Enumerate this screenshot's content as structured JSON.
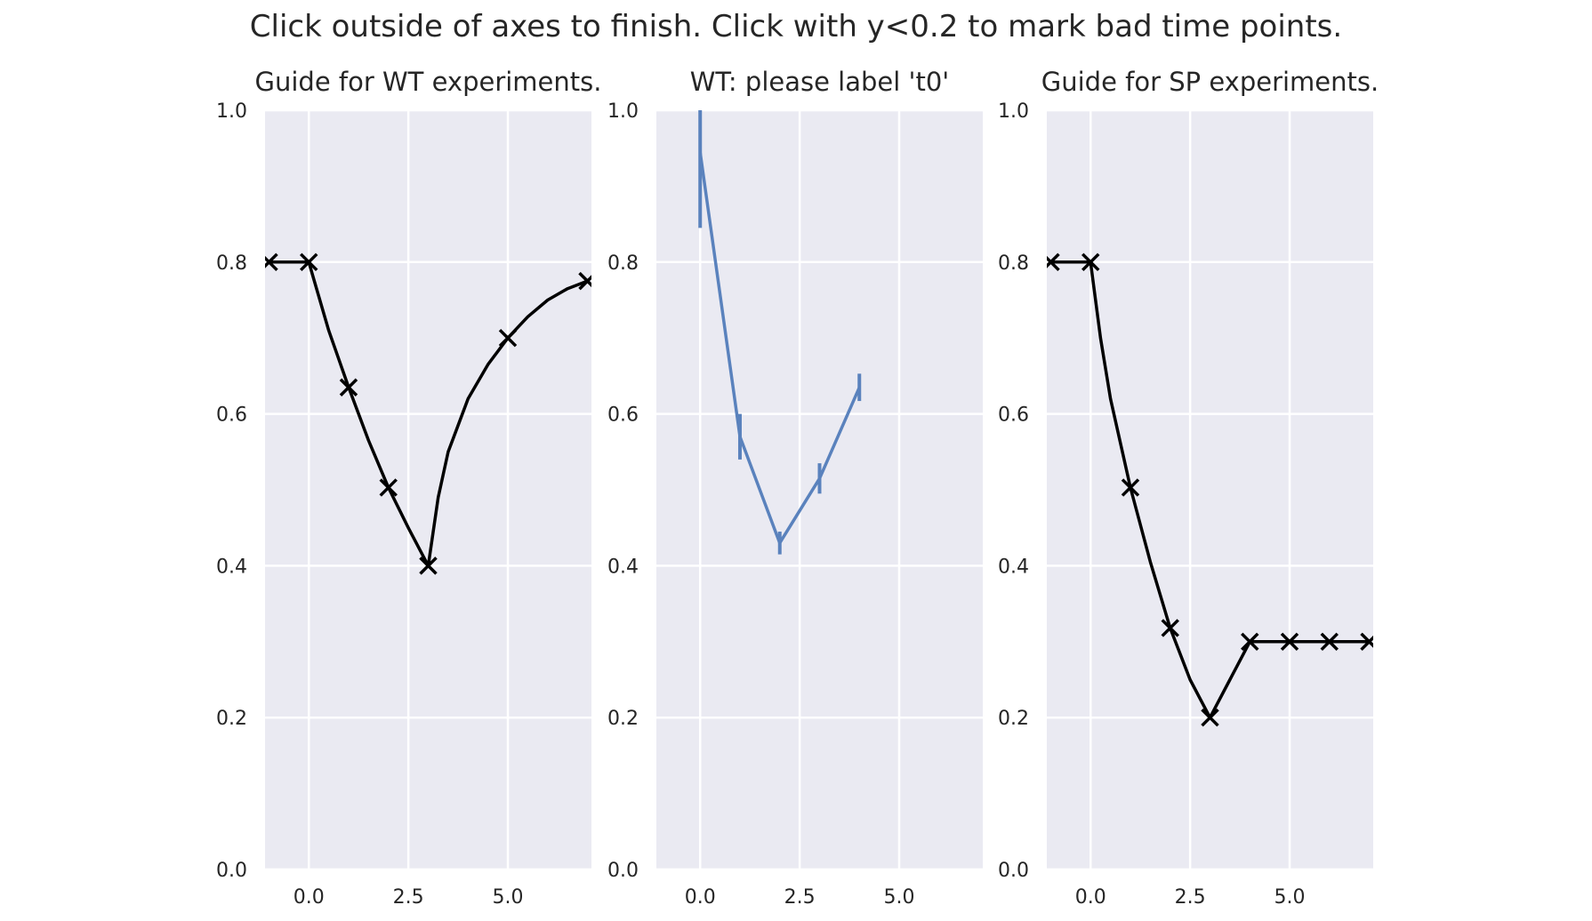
{
  "figure": {
    "suptitle": "Click outside of axes to finish. Click with y<0.2 to mark bad time points."
  },
  "theme": {
    "axes_background": "#eaeaf2",
    "grid_color": "#ffffff",
    "text_color": "#262626",
    "guide_line_color": "#000000",
    "data_line_color": "#5a82bd"
  },
  "chart_data": [
    {
      "type": "line",
      "title": "Guide for WT experiments.",
      "xlim": [
        -1.1,
        7.1
      ],
      "ylim": [
        0.0,
        1.0
      ],
      "xticks": [
        "0.0",
        "2.5",
        "5.0"
      ],
      "xtick_values": [
        0.0,
        2.5,
        5.0
      ],
      "yticks": [
        "0.0",
        "0.2",
        "0.4",
        "0.6",
        "0.8",
        "1.0"
      ],
      "ytick_values": [
        0.0,
        0.2,
        0.4,
        0.6,
        0.8,
        1.0
      ],
      "grid": true,
      "series": [
        {
          "style": "curve-with-x-markers",
          "color": "#000000",
          "curve": [
            [
              -1,
              0.8
            ],
            [
              0,
              0.8
            ],
            [
              0.5,
              0.71
            ],
            [
              1,
              0.635
            ],
            [
              1.5,
              0.565
            ],
            [
              2,
              0.503
            ],
            [
              2.5,
              0.45
            ],
            [
              3,
              0.4
            ],
            [
              3.25,
              0.49
            ],
            [
              3.5,
              0.55
            ],
            [
              4,
              0.62
            ],
            [
              4.5,
              0.665
            ],
            [
              5,
              0.7
            ],
            [
              5.5,
              0.728
            ],
            [
              6,
              0.75
            ],
            [
              6.5,
              0.765
            ],
            [
              7,
              0.775
            ]
          ],
          "markers": [
            [
              -1,
              0.8
            ],
            [
              0,
              0.8
            ],
            [
              1,
              0.635
            ],
            [
              2,
              0.503
            ],
            [
              3,
              0.4
            ],
            [
              5,
              0.7
            ],
            [
              7,
              0.775
            ]
          ]
        }
      ]
    },
    {
      "type": "line",
      "title": "WT: please label 't0'",
      "xlim": [
        -1.1,
        7.1
      ],
      "ylim": [
        0.0,
        1.0
      ],
      "xticks": [
        "0.0",
        "2.5",
        "5.0"
      ],
      "xtick_values": [
        0.0,
        2.5,
        5.0
      ],
      "yticks": [
        "0.0",
        "0.2",
        "0.4",
        "0.6",
        "0.8",
        "1.0"
      ],
      "ytick_values": [
        0.0,
        0.2,
        0.4,
        0.6,
        0.8,
        1.0
      ],
      "grid": true,
      "series": [
        {
          "style": "line-with-errorbars",
          "color": "#5a82bd",
          "x": [
            0,
            1,
            2,
            3,
            4
          ],
          "y": [
            0.945,
            0.57,
            0.43,
            0.515,
            0.635
          ],
          "yerr": [
            0.1,
            0.03,
            0.015,
            0.02,
            0.018
          ]
        }
      ]
    },
    {
      "type": "line",
      "title": "Guide for SP experiments.",
      "xlim": [
        -1.1,
        7.1
      ],
      "ylim": [
        0.0,
        1.0
      ],
      "xticks": [
        "0.0",
        "2.5",
        "5.0"
      ],
      "xtick_values": [
        0.0,
        2.5,
        5.0
      ],
      "yticks": [
        "0.0",
        "0.2",
        "0.4",
        "0.6",
        "0.8",
        "1.0"
      ],
      "ytick_values": [
        0.0,
        0.2,
        0.4,
        0.6,
        0.8,
        1.0
      ],
      "grid": true,
      "series": [
        {
          "style": "curve-with-x-markers",
          "color": "#000000",
          "curve": [
            [
              -1,
              0.8
            ],
            [
              0,
              0.8
            ],
            [
              0.25,
              0.7
            ],
            [
              0.5,
              0.62
            ],
            [
              1,
              0.503
            ],
            [
              1.5,
              0.405
            ],
            [
              2,
              0.318
            ],
            [
              2.5,
              0.25
            ],
            [
              3,
              0.2
            ],
            [
              3.5,
              0.25
            ],
            [
              4,
              0.3
            ],
            [
              5,
              0.3
            ],
            [
              6,
              0.3
            ],
            [
              7,
              0.3
            ]
          ],
          "markers": [
            [
              -1,
              0.8
            ],
            [
              0,
              0.8
            ],
            [
              1,
              0.503
            ],
            [
              2,
              0.318
            ],
            [
              3,
              0.2
            ],
            [
              4,
              0.3
            ],
            [
              5,
              0.3
            ],
            [
              6,
              0.3
            ],
            [
              7,
              0.3
            ]
          ]
        }
      ]
    }
  ]
}
